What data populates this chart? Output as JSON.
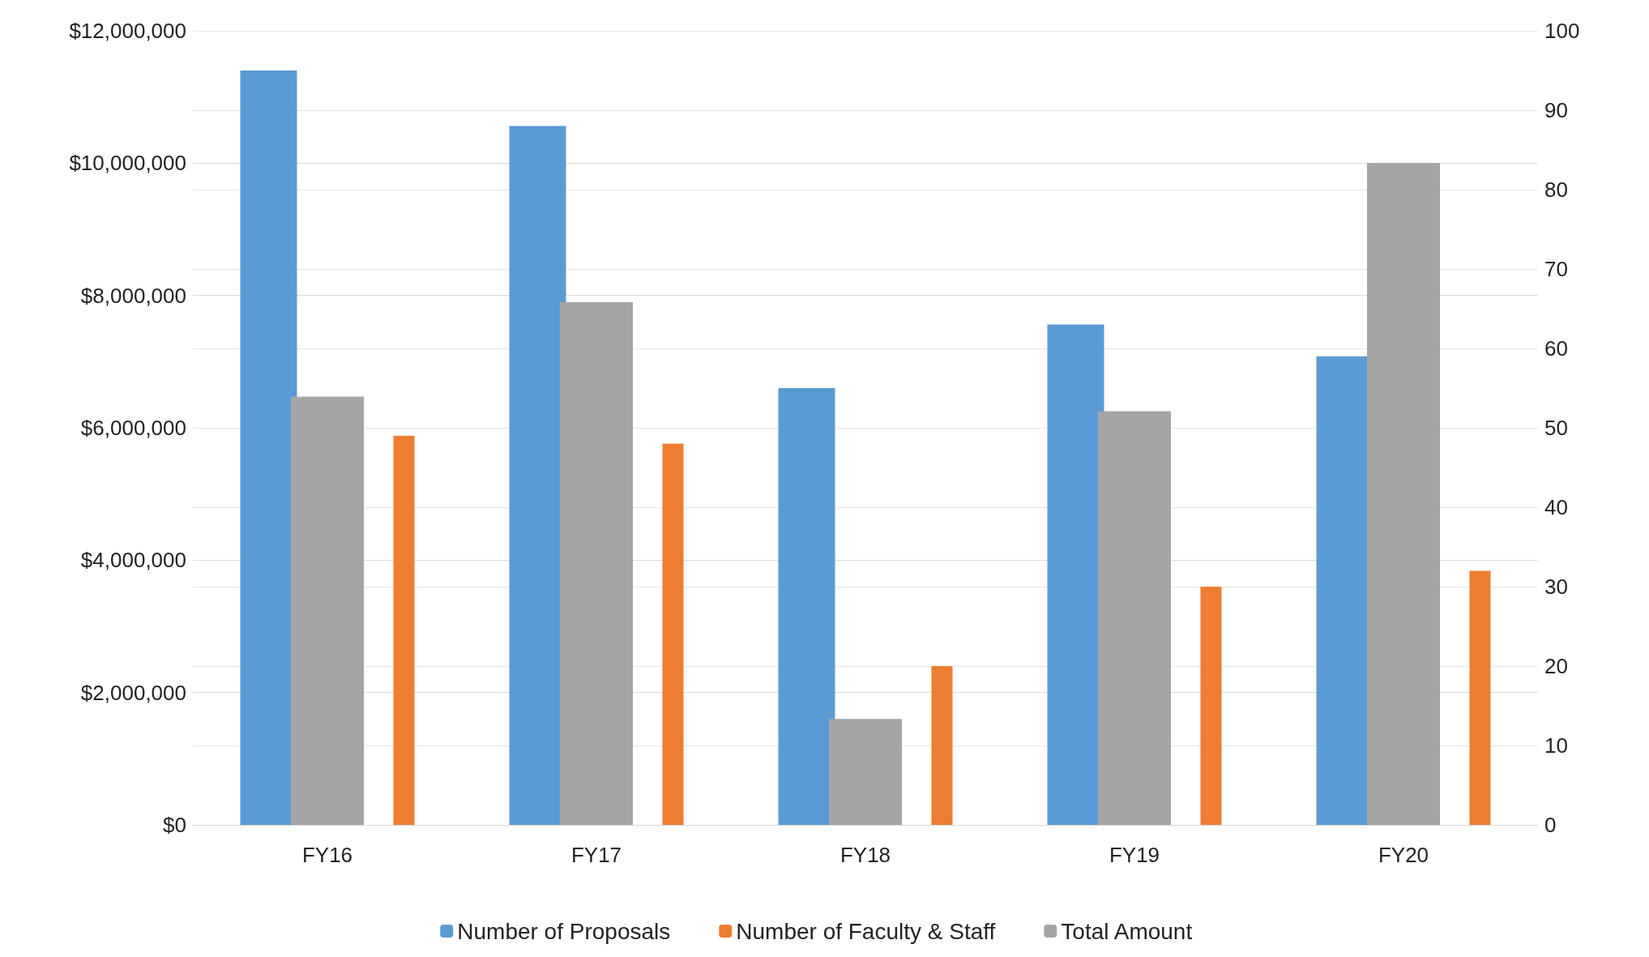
{
  "chart_data": {
    "type": "bar",
    "categories": [
      "FY16",
      "FY17",
      "FY18",
      "FY19",
      "FY20"
    ],
    "series": [
      {
        "name": "Number of Proposals",
        "color": "#5b9bd5",
        "axis": "y2",
        "values": [
          95,
          88,
          55,
          63,
          59
        ]
      },
      {
        "name": "Number of Faculty & Staff",
        "color": "#ed7d31",
        "axis": "y2",
        "values": [
          49,
          48,
          20,
          30,
          32
        ]
      },
      {
        "name": "Total Amount",
        "color": "#a5a5a5",
        "values": [
          6470000,
          7900000,
          1600000,
          6250000,
          10000000
        ]
      }
    ],
    "ylim": [
      0,
      12000000
    ],
    "yticks": [
      {
        "value": 0,
        "label": "$0"
      },
      {
        "value": 2000000,
        "label": "$2,000,000"
      },
      {
        "value": 4000000,
        "label": "$4,000,000"
      },
      {
        "value": 6000000,
        "label": "$6,000,000"
      },
      {
        "value": 8000000,
        "label": "$8,000,000"
      },
      {
        "value": 10000000,
        "label": "$10,000,000"
      },
      {
        "value": 12000000,
        "label": "$12,000,000"
      }
    ],
    "y2lim": [
      0,
      100
    ],
    "y2ticks": [
      0,
      10,
      20,
      30,
      40,
      50,
      60,
      70,
      80,
      90,
      100
    ],
    "grid": true,
    "legend": "bottom"
  }
}
